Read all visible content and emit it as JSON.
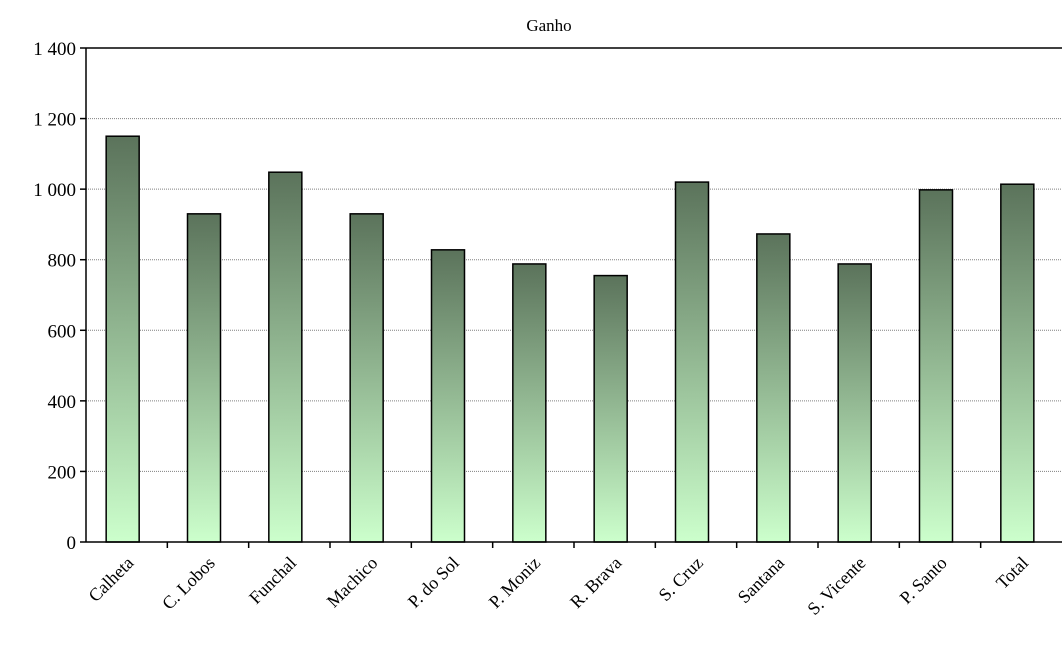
{
  "chart_data": {
    "type": "bar",
    "title": "Ganho",
    "xlabel": "",
    "ylabel": "",
    "categories": [
      "Calheta",
      "C. Lobos",
      "Funchal",
      "Machico",
      "P. do Sol",
      "P. Moniz",
      "R. Brava",
      "S. Cruz",
      "Santana",
      "S. Vicente",
      "P. Santo",
      "Total"
    ],
    "values": [
      1150,
      930,
      1048,
      930,
      828,
      788,
      755,
      1020,
      873,
      788,
      998,
      1014
    ],
    "yticks": [
      "0",
      "200",
      "400",
      "600",
      "800",
      "1 000",
      "1 200",
      "1 400"
    ],
    "ylim": [
      0,
      1400
    ],
    "grid": true,
    "legend": "none",
    "colors": {
      "bar_top": "#5b735b",
      "bar_bottom": "#ccffcc",
      "bar_stroke": "#000000",
      "gridline": "#808080",
      "axis": "#000000"
    }
  }
}
